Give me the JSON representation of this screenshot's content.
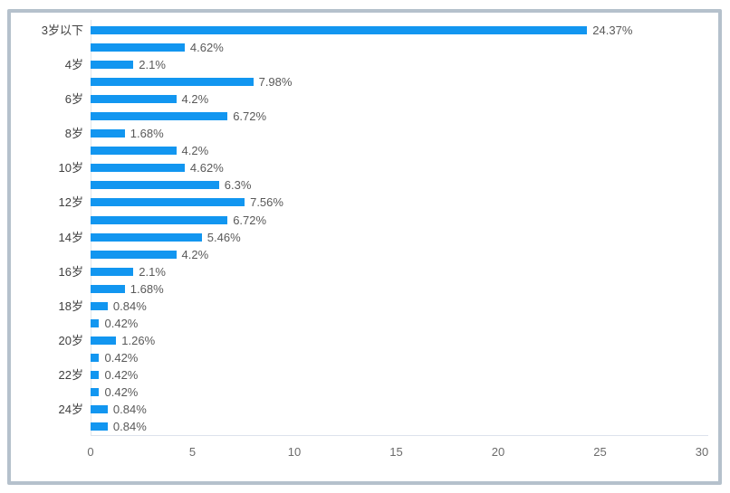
{
  "chart_data": {
    "type": "bar",
    "orientation": "horizontal",
    "title": "",
    "xlabel": "",
    "ylabel": "",
    "xlim": [
      0,
      30
    ],
    "x_ticks": [
      "0",
      "5",
      "10",
      "15",
      "20",
      "25",
      "30"
    ],
    "x_tick_values": [
      0,
      5,
      10,
      15,
      20,
      25,
      30
    ],
    "grid": "off",
    "legend": "none",
    "bar_color": "#1296F0",
    "bars": [
      {
        "value": 24.37,
        "label": "24.37%"
      },
      {
        "value": 4.62,
        "label": "4.62%"
      },
      {
        "value": 2.1,
        "label": "2.1%"
      },
      {
        "value": 7.98,
        "label": "7.98%"
      },
      {
        "value": 4.2,
        "label": "4.2%"
      },
      {
        "value": 6.72,
        "label": "6.72%"
      },
      {
        "value": 1.68,
        "label": "1.68%"
      },
      {
        "value": 4.2,
        "label": "4.2%"
      },
      {
        "value": 4.62,
        "label": "4.62%"
      },
      {
        "value": 6.3,
        "label": "6.3%"
      },
      {
        "value": 7.56,
        "label": "7.56%"
      },
      {
        "value": 6.72,
        "label": "6.72%"
      },
      {
        "value": 5.46,
        "label": "5.46%"
      },
      {
        "value": 4.2,
        "label": "4.2%"
      },
      {
        "value": 2.1,
        "label": "2.1%"
      },
      {
        "value": 1.68,
        "label": "1.68%"
      },
      {
        "value": 0.84,
        "label": "0.84%"
      },
      {
        "value": 0.42,
        "label": "0.42%"
      },
      {
        "value": 1.26,
        "label": "1.26%"
      },
      {
        "value": 0.42,
        "label": "0.42%"
      },
      {
        "value": 0.42,
        "label": "0.42%"
      },
      {
        "value": 0.42,
        "label": "0.42%"
      },
      {
        "value": 0.84,
        "label": "0.84%"
      },
      {
        "value": 0.84,
        "label": "0.84%"
      }
    ],
    "visible_y_axis_labels": [
      {
        "row": 0,
        "text": "3岁以下"
      },
      {
        "row": 2,
        "text": "4岁"
      },
      {
        "row": 4,
        "text": "6岁"
      },
      {
        "row": 6,
        "text": "8岁"
      },
      {
        "row": 8,
        "text": "10岁"
      },
      {
        "row": 10,
        "text": "12岁"
      },
      {
        "row": 12,
        "text": "14岁"
      },
      {
        "row": 14,
        "text": "16岁"
      },
      {
        "row": 16,
        "text": "18岁"
      },
      {
        "row": 18,
        "text": "20岁"
      },
      {
        "row": 20,
        "text": "22岁"
      },
      {
        "row": 22,
        "text": "24岁"
      }
    ],
    "colors": {
      "bar": "#1296F0",
      "card_border": "#b5c1cc",
      "axis_line": "#e2e6eb",
      "data_label_text": "#595959",
      "category_label_text": "#404040",
      "tick_label_text": "#6b6b6b",
      "background": "#ffffff"
    }
  }
}
